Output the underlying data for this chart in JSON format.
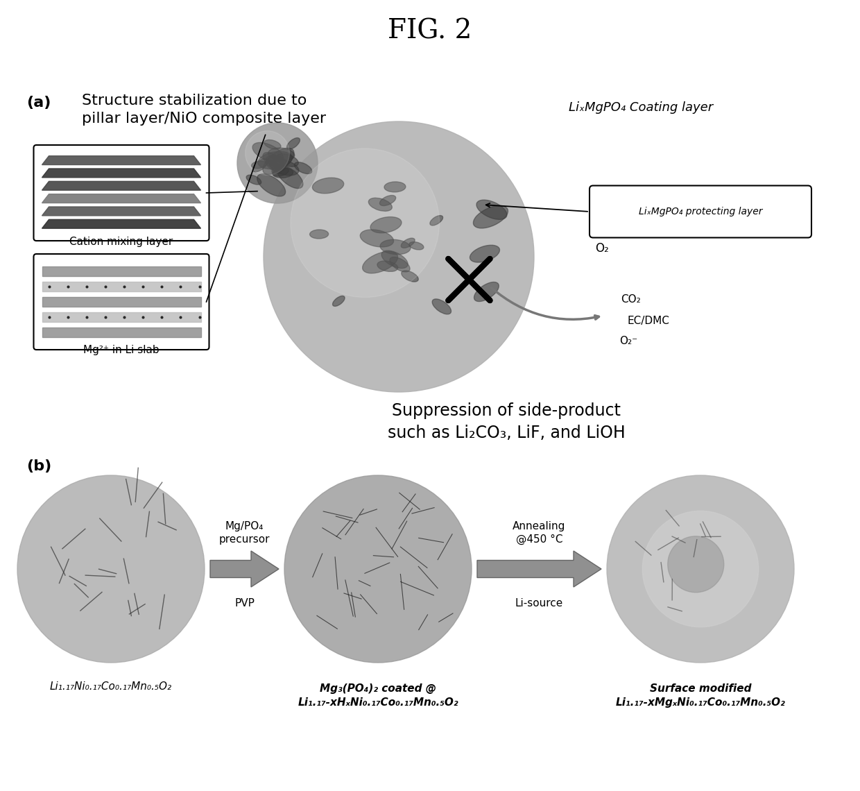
{
  "title": "FIG. 2",
  "title_fontsize": 28,
  "background_color": "#ffffff",
  "label_a": "(a)",
  "label_b": "(b)",
  "text_structure": "Structure stabilization due to\npillar layer/NiO composite layer",
  "text_coating": "LiₓMgPO₄ Coating layer",
  "text_cation": "Cation mixing layer",
  "text_mg_li": "Mg²⁺ in Li slab",
  "text_protecting": "LiₓMgPO₄ protecting layer",
  "text_o2": "O₂",
  "text_co2": "CO₂",
  "text_ecdmc": "EC/DMC",
  "text_o2minus": "O₂⁻",
  "text_suppression": "Suppression of side-product\nsuch as Li₂CO₃, LiF, and LiOH",
  "text_pvp": "PVP",
  "text_mgpo4": "Mg/PO₄\nprecursor",
  "text_lisource": "Li-source",
  "text_annealing": "Annealing\n@450 °C",
  "text_formula1": "Li₁.₁₇Ni₀.₁₇Co₀.₁₇Mn₀.₅O₂",
  "text_formula2": "Mg₃(PO₄)₂ coated @\nLi₁.₁₇-xHₓNi₀.₁₇Co₀.₁₇Mn₀.₅O₂",
  "text_formula3": "Surface modified\nLi₁.₁₇-xMgₓNi₀.₁₇Co₀.₁₇Mn₀.₅O₂"
}
